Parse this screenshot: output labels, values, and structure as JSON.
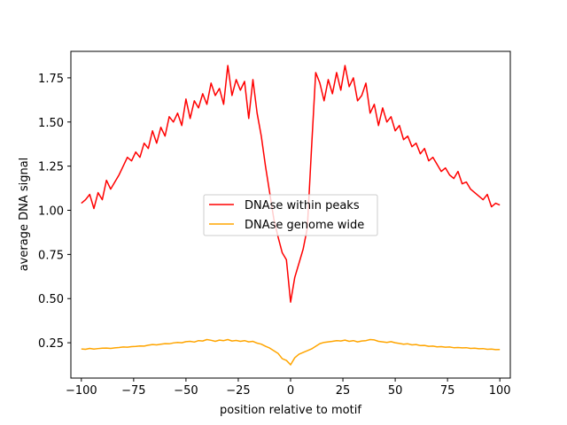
{
  "chart_data": {
    "type": "line",
    "title": "",
    "xlabel": "position relative to motif",
    "ylabel": "average DNA signal",
    "xlim": [
      -105,
      105
    ],
    "ylim": [
      0.05,
      1.9
    ],
    "xticks": [
      -100,
      -75,
      -50,
      -25,
      0,
      25,
      50,
      75,
      100
    ],
    "xtick_labels": [
      "−100",
      "−75",
      "−50",
      "−25",
      "0",
      "25",
      "50",
      "75",
      "100"
    ],
    "yticks": [
      0.25,
      0.5,
      0.75,
      1.0,
      1.25,
      1.5,
      1.75
    ],
    "ytick_labels": [
      "0.25",
      "0.50",
      "0.75",
      "1.00",
      "1.25",
      "1.50",
      "1.75"
    ],
    "grid": false,
    "legend_position": "center",
    "x": [
      -100,
      -98,
      -96,
      -94,
      -92,
      -90,
      -88,
      -86,
      -84,
      -82,
      -80,
      -78,
      -76,
      -74,
      -72,
      -70,
      -68,
      -66,
      -64,
      -62,
      -60,
      -58,
      -56,
      -54,
      -52,
      -50,
      -48,
      -46,
      -44,
      -42,
      -40,
      -38,
      -36,
      -34,
      -32,
      -30,
      -28,
      -26,
      -24,
      -22,
      -20,
      -18,
      -16,
      -14,
      -12,
      -10,
      -8,
      -6,
      -4,
      -2,
      0,
      2,
      4,
      6,
      8,
      10,
      12,
      14,
      16,
      18,
      20,
      22,
      24,
      26,
      28,
      30,
      32,
      34,
      36,
      38,
      40,
      42,
      44,
      46,
      48,
      50,
      52,
      54,
      56,
      58,
      60,
      62,
      64,
      66,
      68,
      70,
      72,
      74,
      76,
      78,
      80,
      82,
      84,
      86,
      88,
      90,
      92,
      94,
      96,
      98,
      100
    ],
    "series": [
      {
        "name": "DNAse within peaks",
        "color": "#ff0000",
        "values": [
          1.04,
          1.06,
          1.09,
          1.01,
          1.1,
          1.06,
          1.17,
          1.12,
          1.16,
          1.2,
          1.25,
          1.3,
          1.28,
          1.33,
          1.3,
          1.38,
          1.35,
          1.45,
          1.38,
          1.47,
          1.42,
          1.53,
          1.5,
          1.55,
          1.48,
          1.63,
          1.52,
          1.62,
          1.58,
          1.66,
          1.6,
          1.72,
          1.65,
          1.69,
          1.6,
          1.82,
          1.65,
          1.74,
          1.68,
          1.73,
          1.52,
          1.74,
          1.55,
          1.42,
          1.25,
          1.1,
          0.95,
          0.85,
          0.76,
          0.72,
          0.48,
          0.62,
          0.7,
          0.78,
          0.9,
          1.35,
          1.78,
          1.72,
          1.62,
          1.74,
          1.66,
          1.78,
          1.68,
          1.82,
          1.7,
          1.75,
          1.62,
          1.65,
          1.72,
          1.55,
          1.6,
          1.48,
          1.58,
          1.5,
          1.53,
          1.45,
          1.48,
          1.4,
          1.42,
          1.36,
          1.38,
          1.32,
          1.35,
          1.28,
          1.3,
          1.26,
          1.22,
          1.24,
          1.2,
          1.18,
          1.22,
          1.15,
          1.16,
          1.12,
          1.1,
          1.08,
          1.06,
          1.09,
          1.02,
          1.04,
          1.03
        ]
      },
      {
        "name": "DNAse genome wide",
        "color": "#ffa500",
        "values": [
          0.215,
          0.213,
          0.218,
          0.214,
          0.217,
          0.219,
          0.22,
          0.218,
          0.221,
          0.223,
          0.226,
          0.225,
          0.228,
          0.229,
          0.232,
          0.231,
          0.236,
          0.24,
          0.238,
          0.242,
          0.245,
          0.244,
          0.249,
          0.252,
          0.25,
          0.256,
          0.258,
          0.254,
          0.262,
          0.26,
          0.268,
          0.264,
          0.258,
          0.265,
          0.262,
          0.268,
          0.26,
          0.263,
          0.258,
          0.262,
          0.255,
          0.258,
          0.248,
          0.242,
          0.23,
          0.22,
          0.205,
          0.19,
          0.16,
          0.15,
          0.125,
          0.165,
          0.185,
          0.195,
          0.205,
          0.215,
          0.23,
          0.245,
          0.252,
          0.255,
          0.258,
          0.262,
          0.26,
          0.265,
          0.258,
          0.262,
          0.255,
          0.26,
          0.262,
          0.268,
          0.266,
          0.258,
          0.255,
          0.252,
          0.256,
          0.25,
          0.246,
          0.242,
          0.244,
          0.238,
          0.24,
          0.234,
          0.235,
          0.23,
          0.231,
          0.227,
          0.228,
          0.225,
          0.226,
          0.222,
          0.223,
          0.221,
          0.222,
          0.218,
          0.219,
          0.216,
          0.217,
          0.213,
          0.214,
          0.211,
          0.212
        ]
      }
    ]
  }
}
